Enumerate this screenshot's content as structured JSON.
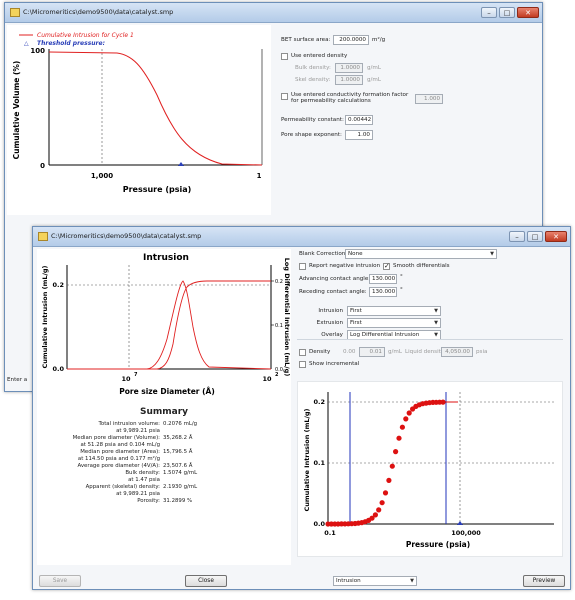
{
  "back_window": {
    "title": "C:\\Micromeritics\\demo9500\\data\\catalyst.smp",
    "chart_legend": {
      "line1": "Cumulative Intrusion for Cycle 1",
      "line2": "Threshold pressure:"
    },
    "chart": {
      "ylabel": "Cumulative Volume (%)",
      "xlabel": "Pressure (psia)",
      "ytick_top": "100",
      "ytick_bottom": "0",
      "xtick_mid": "1,000",
      "xtick_right": "1"
    },
    "settings": {
      "bet_label": "BET surface area:",
      "bet_value": "200.0000",
      "bet_unit": "m²/g",
      "use_density_label": "Use entered density",
      "bulk_label": "Bulk density:",
      "bulk_value": "1.0000",
      "bulk_unit": "g/mL",
      "skel_label": "Skel density:",
      "skel_value": "1.0000",
      "skel_unit": "g/mL",
      "conductivity_label": "Use entered conductivity formation factor for permeability calculations",
      "conductivity_value": "1.000",
      "perm_label": "Permeability constant:",
      "perm_value": "0.00442",
      "pore_shape_label": "Pore shape exponent:",
      "pore_shape_value": "1.00"
    },
    "status_text": "Enter a"
  },
  "front_window": {
    "title": "C:\\Micromeritics\\demo9500\\data\\catalyst.smp",
    "intrusion_chart": {
      "title": "Intrusion",
      "ylabel": "Cumulative Intrusion (mL/g)",
      "y2label": "Log Differential Intrusion (mL/g)",
      "xlabel": "Pore size Diameter (Å)",
      "yticks": [
        "0.2",
        "0.0"
      ],
      "y2ticks": [
        "0.2",
        "0.1",
        "0.0"
      ],
      "xtick_left": "10",
      "xtick_left_exp": "7",
      "xtick_right": "10",
      "xtick_right_exp": "2"
    },
    "summary": {
      "title": "Summary",
      "rows": [
        {
          "label": "Total intrusion volume:",
          "value": "0.2076 mL/g"
        },
        {
          "label": "",
          "value": "at 9,989.21 psia"
        },
        {
          "label": "Median pore diameter (Volume):",
          "value": "35,268.2 Å"
        },
        {
          "label": "",
          "value": "at 51.28 psia and 0.104 mL/g"
        },
        {
          "label": "Median pore diameter (Area):",
          "value": "15,796.5 Å"
        },
        {
          "label": "",
          "value": "at 114.50 psia and 0.177 m²/g"
        },
        {
          "label": "Average pore diameter (4V/A):",
          "value": "23,507.6 Å"
        },
        {
          "label": "Bulk density:",
          "value": "1.5074 g/mL"
        },
        {
          "label": "",
          "value": "at 1.47 psia"
        },
        {
          "label": "Apparent (skeletal) density:",
          "value": "2.1930 g/mL"
        },
        {
          "label": "",
          "value": "at 9,989.21 psia"
        },
        {
          "label": "Porosity:",
          "value": "31.2899 %"
        }
      ]
    },
    "settings": {
      "blank_label": "Blank Correction",
      "blank_value": "None",
      "report_neg_label": "Report negative intrusion",
      "smooth_label": "Smooth differentials",
      "adv_label": "Advancing contact angle:",
      "adv_value": "130.000",
      "adv_unit": "°",
      "rec_label": "Receding contact angle:",
      "rec_value": "130.000",
      "rec_unit": "°",
      "intrusion_label": "Intrusion",
      "intrusion_value": "First",
      "extrusion_label": "Extrusion",
      "extrusion_value": "First",
      "overlay_label": "Overlay",
      "overlay_value": "Log Differential Intrusion",
      "density_label": "Density",
      "density_v1": "0.00",
      "density_v2": "0.01",
      "density_unit1": "g/mL",
      "density_label2": "Liquid density:",
      "density_v3": "4,050.00",
      "density_unit2": "psia",
      "show_incr_label": "Show incremental"
    },
    "pressure_chart": {
      "ylabel": "Cumulative Intrusion (mL/g)",
      "xlabel": "Pressure (psia)",
      "yticks": [
        "0.2",
        "0.1",
        "0.0"
      ],
      "xtick_left": "0.1",
      "xtick_right": "100,000"
    },
    "bottom": {
      "save_label": "Save",
      "close_label": "Close",
      "dropdown_value": "Intrusion",
      "preview_label": "Preview"
    }
  },
  "colors": {
    "curve": "#e02020",
    "points": "#dd1111",
    "marker_line": "#2233bb",
    "threshold_marker": "#2a3fb8"
  },
  "icons": {
    "window_icon": "folder-icon",
    "minimize": "minimize-icon",
    "maximize": "maximize-icon",
    "close": "close-icon"
  }
}
